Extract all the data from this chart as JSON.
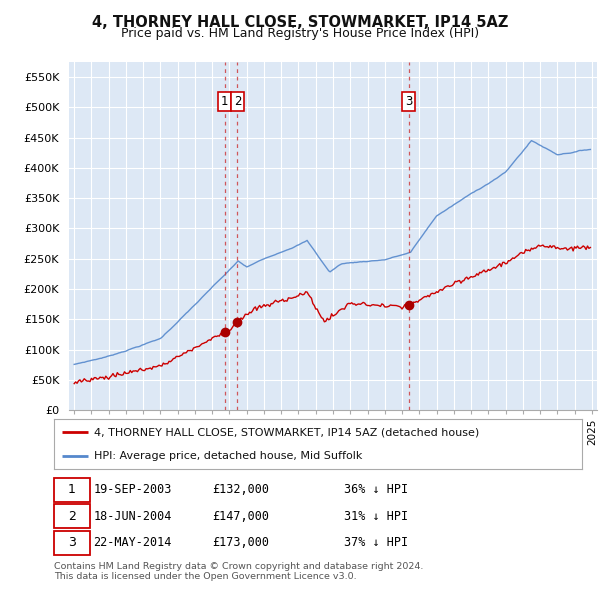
{
  "title": "4, THORNEY HALL CLOSE, STOWMARKET, IP14 5AZ",
  "subtitle": "Price paid vs. HM Land Registry's House Price Index (HPI)",
  "title_fontsize": 11,
  "subtitle_fontsize": 9.5,
  "bg_color": "#ffffff",
  "plot_bg_color": "#dde8f5",
  "grid_color": "#ffffff",
  "hpi_color": "#5588cc",
  "price_color": "#cc0000",
  "marker_color": "#aa0000",
  "ylim": [
    0,
    575000
  ],
  "yticks": [
    0,
    50000,
    100000,
    150000,
    200000,
    250000,
    300000,
    350000,
    400000,
    450000,
    500000,
    550000
  ],
  "ytick_labels": [
    "£0",
    "£50K",
    "£100K",
    "£150K",
    "£200K",
    "£250K",
    "£300K",
    "£350K",
    "£400K",
    "£450K",
    "£500K",
    "£550K"
  ],
  "transactions": [
    {
      "label": "1",
      "date": "19-SEP-2003",
      "price": 132000,
      "hpi_pct": "36% ↓ HPI",
      "x_year": 2003.72
    },
    {
      "label": "2",
      "date": "18-JUN-2004",
      "price": 147000,
      "hpi_pct": "31% ↓ HPI",
      "x_year": 2004.46
    },
    {
      "label": "3",
      "date": "22-MAY-2014",
      "price": 173000,
      "hpi_pct": "37% ↓ HPI",
      "x_year": 2014.39
    }
  ],
  "vline_color": "#cc3333",
  "vline_style": "--",
  "legend_line1": "4, THORNEY HALL CLOSE, STOWMARKET, IP14 5AZ (detached house)",
  "legend_line2": "HPI: Average price, detached house, Mid Suffolk",
  "footnote": "Contains HM Land Registry data © Crown copyright and database right 2024.\nThis data is licensed under the Open Government Licence v3.0.",
  "table_rows": [
    [
      "1",
      "19-SEP-2003",
      "£132,000",
      "36% ↓ HPI"
    ],
    [
      "2",
      "18-JUN-2004",
      "£147,000",
      "31% ↓ HPI"
    ],
    [
      "3",
      "22-MAY-2014",
      "£173,000",
      "37% ↓ HPI"
    ]
  ],
  "xlim_left": 1994.7,
  "xlim_right": 2025.3
}
